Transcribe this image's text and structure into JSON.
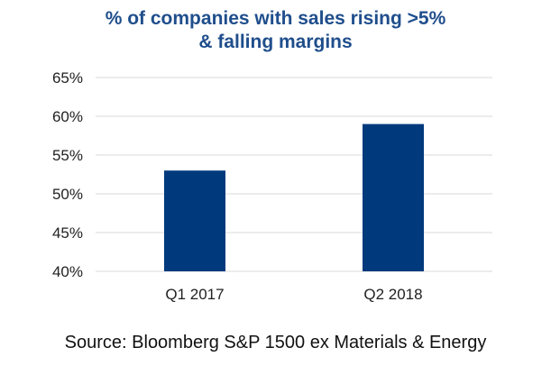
{
  "chart_data": {
    "type": "bar",
    "title": "% of companies with sales rising >5%",
    "subtitle": "& falling margins",
    "categories": [
      "Q1 2017",
      "Q2 2018"
    ],
    "values": [
      53,
      59
    ],
    "ylim": [
      40,
      65
    ],
    "yticks": [
      "40%",
      "45%",
      "50%",
      "55%",
      "60%",
      "65%"
    ],
    "ytick_values": [
      40,
      45,
      50,
      55,
      60,
      65
    ],
    "grid": true,
    "bar_color": "#003a7d",
    "grid_color": "#d9d9d9",
    "title_color": "#1f4e8c"
  },
  "source": "Source: Bloomberg S&P 1500 ex Materials & Energy"
}
